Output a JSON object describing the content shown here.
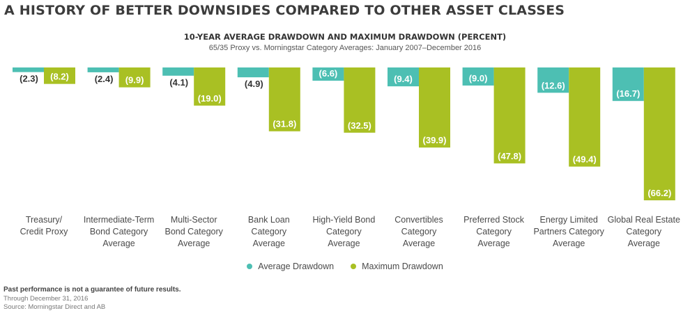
{
  "headline": "A HISTORY OF BETTER DOWNSIDES COMPARED TO OTHER ASSET CLASSES",
  "chart_data": {
    "type": "bar",
    "title": "10-YEAR AVERAGE DRAWDOWN AND MAXIMUM DRAWDOWN (PERCENT)",
    "subtitle": "65/35 Proxy vs. Morningstar Category Averages:  January 2007–December 2016",
    "xlabel": "",
    "ylabel": "",
    "ylim": [
      -66.2,
      0
    ],
    "grid": false,
    "legend_position": "bottom-center",
    "categories": [
      [
        "Treasury/",
        "Credit Proxy"
      ],
      [
        "Intermediate-Term",
        "Bond Category",
        "Average"
      ],
      [
        "Multi-Sector",
        "Bond Category",
        "Average"
      ],
      [
        "Bank Loan",
        "Category",
        "Average"
      ],
      [
        "High-Yield Bond",
        "Category",
        "Average"
      ],
      [
        "Convertibles",
        "Category",
        "Average"
      ],
      [
        "Preferred Stock",
        "Category",
        "Average"
      ],
      [
        "Energy Limited",
        "Partners Category",
        "Average"
      ],
      [
        "Global Real Estate",
        "Category",
        "Average"
      ]
    ],
    "series": [
      {
        "name": "Average Drawdown",
        "color": "#4dbfb3",
        "values": [
          -2.3,
          -2.4,
          -4.1,
          -4.9,
          -6.6,
          -9.4,
          -9.0,
          -12.6,
          -16.7
        ],
        "labels": [
          "(2.3)",
          "(2.4)",
          "(4.1)",
          "(4.9)",
          "(6.6)",
          "(9.4)",
          "(9.0)",
          "(12.6)",
          "(16.7)"
        ]
      },
      {
        "name": "Maximum Drawdown",
        "color": "#a9c023",
        "values": [
          -8.2,
          -9.9,
          -19.0,
          -31.8,
          -32.5,
          -39.9,
          -47.8,
          -49.4,
          -66.2
        ],
        "labels": [
          "(8.2)",
          "(9.9)",
          "(19.0)",
          "(31.8)",
          "(32.5)",
          "(39.9)",
          "(47.8)",
          "(49.4)",
          "(66.2)"
        ]
      }
    ]
  },
  "footer": {
    "note": "Past performance is not a guarantee of future results.",
    "date": "Through December 31, 2016",
    "source": "Source: Morningstar Direct and AB"
  }
}
